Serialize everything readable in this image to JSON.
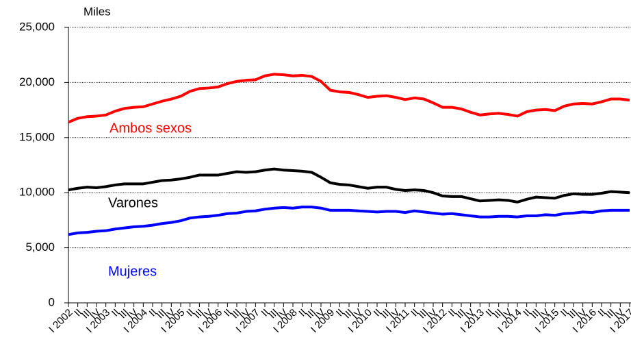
{
  "chart_data": {
    "type": "line",
    "y_label": "Miles",
    "categories": [
      "I 2002",
      "II",
      "III",
      "IV",
      "I 2003",
      "II",
      "III",
      "IV",
      "I 2004",
      "II",
      "III",
      "IV",
      "I 2005",
      "II",
      "III",
      "IV",
      "I 2006",
      "II",
      "III",
      "IV",
      "I 2007",
      "II",
      "III",
      "IV",
      "I 2008",
      "II",
      "III",
      "IV",
      "I 2009",
      "II",
      "III",
      "IV",
      "I 2010",
      "II",
      "III",
      "IV",
      "I 2011",
      "II",
      "III",
      "IV",
      "I 2012",
      "II",
      "III",
      "IV",
      "I 2013",
      "II",
      "III",
      "IV",
      "I 2014",
      "II",
      "III",
      "IV",
      "I 2015",
      "II",
      "III",
      "IV",
      "I 2016",
      "II",
      "III",
      "IV",
      "I 2017"
    ],
    "series": [
      {
        "name": "Ambos sexos",
        "color": "#ff0000",
        "values": [
          16400,
          16750,
          16900,
          16950,
          17050,
          17400,
          17650,
          17750,
          17800,
          18050,
          18300,
          18500,
          18750,
          19200,
          19450,
          19500,
          19600,
          19900,
          20100,
          20200,
          20250,
          20600,
          20750,
          20700,
          20600,
          20650,
          20550,
          20100,
          19300,
          19150,
          19100,
          18900,
          18650,
          18750,
          18800,
          18650,
          18450,
          18600,
          18500,
          18150,
          17750,
          17750,
          17600,
          17300,
          17050,
          17150,
          17200,
          17100,
          16950,
          17350,
          17500,
          17550,
          17450,
          17850,
          18050,
          18100,
          18050,
          18250,
          18500,
          18500,
          18400
        ]
      },
      {
        "name": "Varones",
        "color": "#000000",
        "values": [
          10250,
          10400,
          10500,
          10450,
          10550,
          10700,
          10800,
          10800,
          10800,
          10950,
          11100,
          11150,
          11250,
          11400,
          11600,
          11600,
          11600,
          11750,
          11900,
          11850,
          11900,
          12050,
          12150,
          12050,
          12000,
          11950,
          11850,
          11400,
          10900,
          10750,
          10700,
          10550,
          10400,
          10500,
          10500,
          10300,
          10200,
          10250,
          10200,
          10000,
          9700,
          9650,
          9650,
          9450,
          9250,
          9300,
          9350,
          9300,
          9150,
          9400,
          9600,
          9550,
          9500,
          9750,
          9900,
          9850,
          9850,
          9950,
          10100,
          10050,
          10000
        ]
      },
      {
        "name": "Mujeres",
        "color": "#0000ff",
        "values": [
          6200,
          6350,
          6400,
          6500,
          6550,
          6700,
          6800,
          6900,
          6950,
          7050,
          7200,
          7300,
          7450,
          7700,
          7800,
          7850,
          7950,
          8100,
          8150,
          8300,
          8350,
          8500,
          8600,
          8650,
          8600,
          8700,
          8700,
          8600,
          8400,
          8400,
          8400,
          8350,
          8300,
          8250,
          8300,
          8300,
          8200,
          8350,
          8250,
          8150,
          8050,
          8100,
          8000,
          7900,
          7800,
          7800,
          7850,
          7850,
          7800,
          7900,
          7900,
          8000,
          7950,
          8100,
          8150,
          8250,
          8200,
          8350,
          8400,
          8400,
          8400
        ]
      }
    ],
    "ylim": [
      0,
      25000
    ],
    "yticks": [
      {
        "value": 0,
        "label": "0"
      },
      {
        "value": 5000,
        "label": "5,000"
      },
      {
        "value": 10000,
        "label": "10,000"
      },
      {
        "value": 15000,
        "label": "15,000"
      },
      {
        "value": 20000,
        "label": "20,000"
      },
      {
        "value": 25000,
        "label": "25,000"
      }
    ],
    "grid": true
  }
}
